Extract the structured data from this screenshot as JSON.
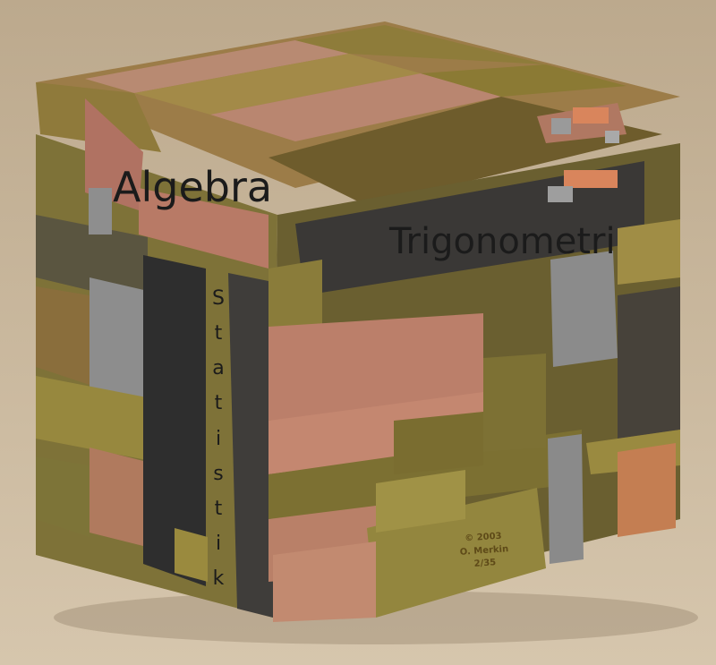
{
  "photo": {
    "labels": {
      "algebra": "Algebra",
      "trigonometri": "Trigonometri",
      "statistik": [
        "S",
        "t",
        "a",
        "t",
        "i",
        "s",
        "t",
        "i",
        "k"
      ]
    },
    "engraving": [
      "© 2003",
      "O. Merkin",
      "2/35"
    ]
  },
  "colors": {
    "table": "#c9b69b",
    "copper": "#c0826c",
    "brass": "#8e7f33",
    "dark_metal": "#3a3836",
    "silver": "#8a8a8a",
    "bronze": "#9a6b40"
  }
}
